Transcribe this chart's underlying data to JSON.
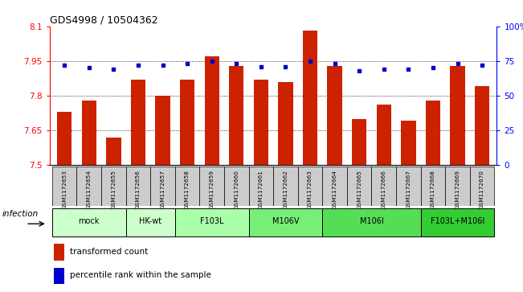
{
  "title": "GDS4998 / 10504362",
  "samples": [
    "GSM1172653",
    "GSM1172654",
    "GSM1172655",
    "GSM1172656",
    "GSM1172657",
    "GSM1172658",
    "GSM1172659",
    "GSM1172660",
    "GSM1172661",
    "GSM1172662",
    "GSM1172663",
    "GSM1172664",
    "GSM1172665",
    "GSM1172666",
    "GSM1172667",
    "GSM1172668",
    "GSM1172669",
    "GSM1172670"
  ],
  "bar_values": [
    7.73,
    7.78,
    7.62,
    7.87,
    7.8,
    7.87,
    7.97,
    7.93,
    7.87,
    7.86,
    8.08,
    7.93,
    7.7,
    7.76,
    7.69,
    7.78,
    7.93,
    7.84
  ],
  "dot_values": [
    72,
    70,
    69,
    72,
    72,
    73,
    75,
    73,
    71,
    71,
    75,
    73,
    68,
    69,
    69,
    70,
    73,
    72
  ],
  "groups_data": [
    {
      "label": "mock",
      "indices": [
        0,
        1,
        2
      ],
      "color": "#ccffcc"
    },
    {
      "label": "HK-wt",
      "indices": [
        3,
        4
      ],
      "color": "#ccffcc"
    },
    {
      "label": "F103L",
      "indices": [
        5,
        6,
        7
      ],
      "color": "#aaffaa"
    },
    {
      "label": "M106V",
      "indices": [
        8,
        9,
        10
      ],
      "color": "#77ee77"
    },
    {
      "label": "M106I",
      "indices": [
        11,
        12,
        13,
        14
      ],
      "color": "#55dd55"
    },
    {
      "label": "F103L+M106I",
      "indices": [
        15,
        16,
        17
      ],
      "color": "#33cc33"
    }
  ],
  "ylim_left": [
    7.5,
    8.1
  ],
  "yticks_left": [
    7.5,
    7.65,
    7.8,
    7.95,
    8.1
  ],
  "ytick_labels_left": [
    "7.5",
    "7.65",
    "7.8",
    "7.95",
    "8.1"
  ],
  "yticks_right": [
    0,
    25,
    50,
    75,
    100
  ],
  "ytick_labels_right": [
    "0",
    "25",
    "50",
    "75",
    "100%"
  ],
  "bar_color": "#cc2200",
  "dot_color": "#0000cc",
  "grid_values": [
    7.65,
    7.8,
    7.95
  ],
  "legend_items": [
    "transformed count",
    "percentile rank within the sample"
  ],
  "infection_label": "infection",
  "sample_bg": "#cccccc"
}
